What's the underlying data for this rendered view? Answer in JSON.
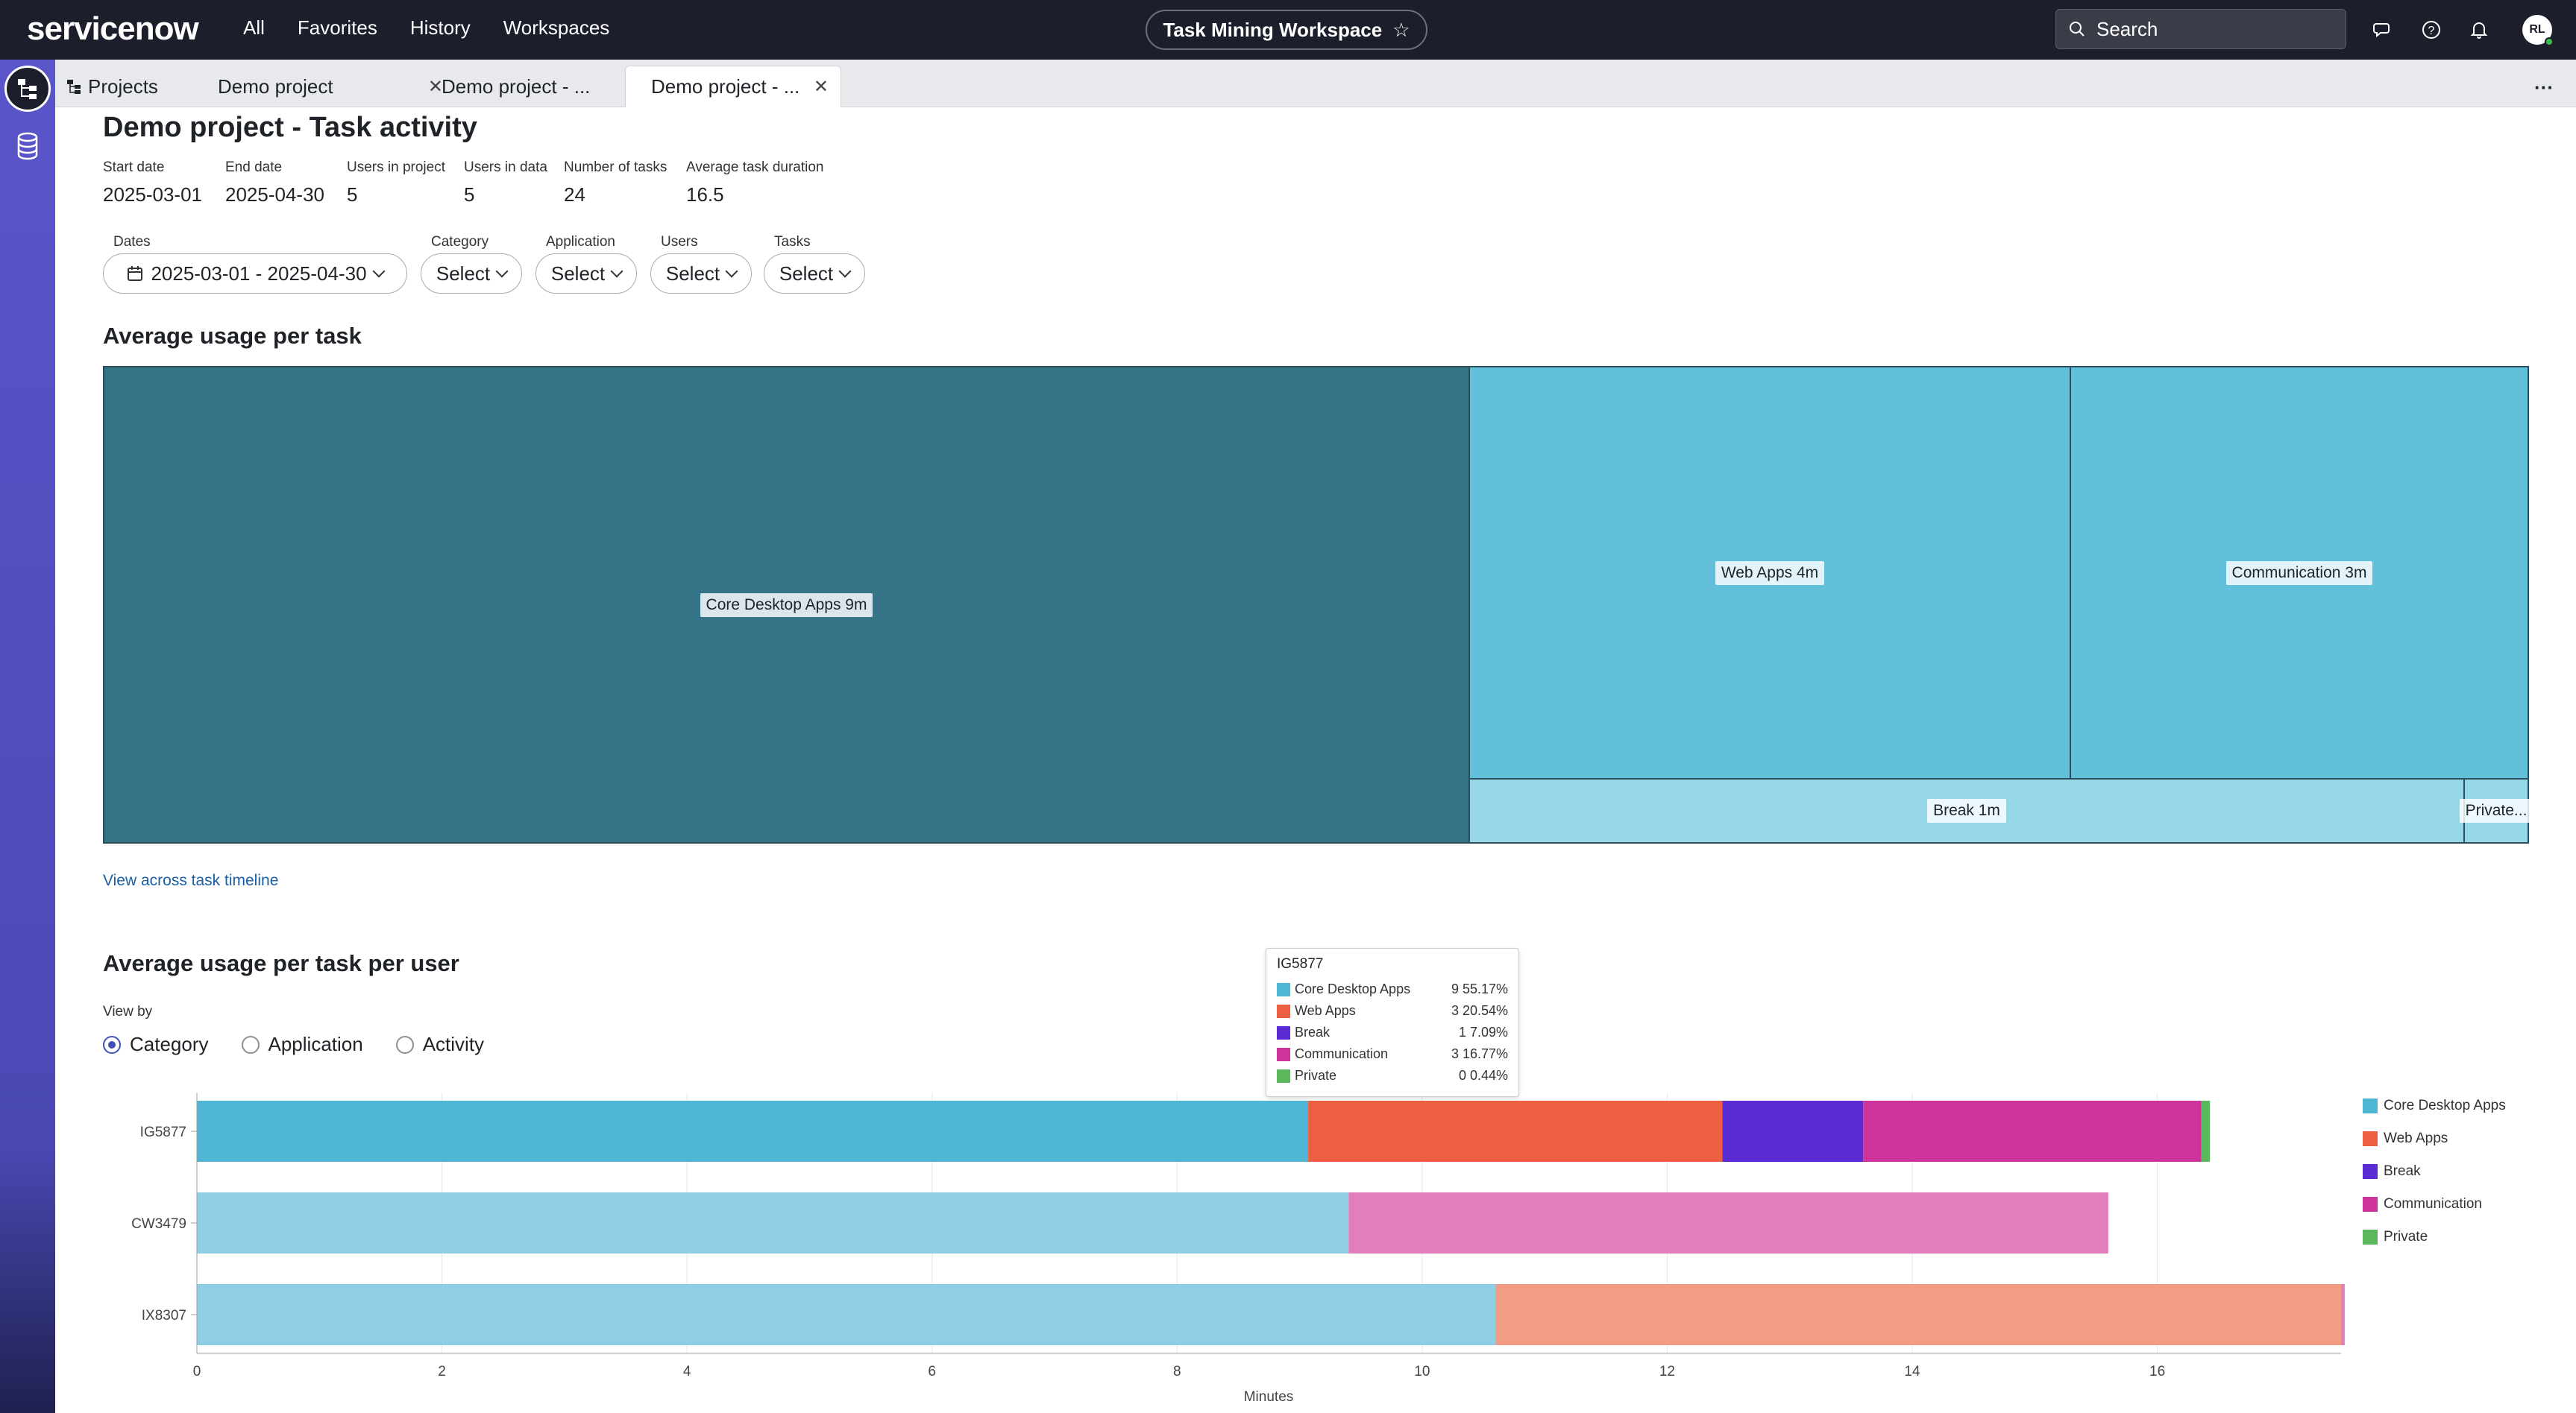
{
  "topnav": {
    "logo": "servicenow",
    "links": [
      "All",
      "Favorites",
      "History",
      "Workspaces"
    ],
    "workspace": "Task Mining Workspace",
    "search_placeholder": "Search",
    "avatar_initials": "RL"
  },
  "tabs": [
    {
      "label": "Projects",
      "closable": false
    },
    {
      "label": "Demo project",
      "closable": true
    },
    {
      "label": "Demo project - ...",
      "closable": true
    },
    {
      "label": "Demo project - ...",
      "closable": true,
      "active": true
    }
  ],
  "page": {
    "title": "Demo project - Task activity",
    "meta": [
      {
        "label": "Start date",
        "value": "2025-03-01"
      },
      {
        "label": "End date",
        "value": "2025-04-30"
      },
      {
        "label": "Users in project",
        "value": "5"
      },
      {
        "label": "Users in data",
        "value": "5"
      },
      {
        "label": "Number of tasks",
        "value": "24"
      },
      {
        "label": "Average task duration",
        "value": "16.5"
      }
    ],
    "filters": [
      {
        "label": "Dates",
        "value": "2025-03-01 - 2025-04-30"
      },
      {
        "label": "Category",
        "value": "Select"
      },
      {
        "label": "Application",
        "value": "Select"
      },
      {
        "label": "Users",
        "value": "Select"
      },
      {
        "label": "Tasks",
        "value": "Select"
      }
    ]
  },
  "treemap": {
    "title": "Average usage per task",
    "tiles": [
      {
        "label": "Core Desktop Apps 9m",
        "minutes": 9,
        "color": "#347486"
      },
      {
        "label": "Web Apps 4m",
        "minutes": 4,
        "color": "#62c0db"
      },
      {
        "label": "Communication 3m",
        "minutes": 3,
        "color": "#62c0db"
      },
      {
        "label": "Break 1m",
        "minutes": 1,
        "color": "#97d8e8"
      },
      {
        "label": "Private...",
        "minutes": 0.1,
        "color": "#97d8e8"
      }
    ],
    "link": "View across task timeline"
  },
  "usage_per_user": {
    "title": "Average usage per task per user",
    "view_by_label": "View by",
    "view_by_options": [
      "Category",
      "Application",
      "Activity"
    ],
    "view_by_selected": "Category"
  },
  "tooltip": {
    "title": "IG5877",
    "rows": [
      {
        "name": "Core Desktop Apps",
        "value": "9",
        "pct": "55.17%",
        "color": "#4fb6d6"
      },
      {
        "name": "Web Apps",
        "value": "3",
        "pct": "20.54%",
        "color": "#ec6041"
      },
      {
        "name": "Break",
        "value": "1",
        "pct": "7.09%",
        "color": "#5b2bd6"
      },
      {
        "name": "Communication",
        "value": "3",
        "pct": "16.77%",
        "color": "#cd339b"
      },
      {
        "name": "Private",
        "value": "0",
        "pct": "0.44%",
        "color": "#5cb85c"
      }
    ]
  },
  "chart_data": {
    "type": "bar",
    "orientation": "horizontal",
    "stacked": true,
    "categories": [
      "IG5877",
      "CW3479",
      "IX8307"
    ],
    "xlabel": "Minutes",
    "xlim": [
      0,
      17.5
    ],
    "xticks": [
      0,
      2,
      4,
      6,
      8,
      10,
      12,
      14,
      16
    ],
    "grid": true,
    "legend_placement": "right",
    "series": [
      {
        "name": "Core Desktop Apps",
        "color": "#4fb6d6",
        "faded_color": "#8ecfe6",
        "values": [
          9.07,
          9.4,
          10.6
        ]
      },
      {
        "name": "Web Apps",
        "color": "#ec6041",
        "faded_color": "#f29c84",
        "values": [
          3.38,
          0,
          6.9
        ]
      },
      {
        "name": "Break",
        "color": "#5b2bd6",
        "faded_color": "#9a7ee6",
        "values": [
          1.15,
          0,
          0
        ]
      },
      {
        "name": "Communication",
        "color": "#cd339b",
        "faded_color": "#e07fbb",
        "values": [
          2.76,
          6.2,
          0.03
        ]
      },
      {
        "name": "Private",
        "color": "#5cb85c",
        "faded_color": "#9ed29e",
        "values": [
          0.07,
          0,
          0
        ]
      }
    ],
    "highlighted_category": "IG5877"
  }
}
